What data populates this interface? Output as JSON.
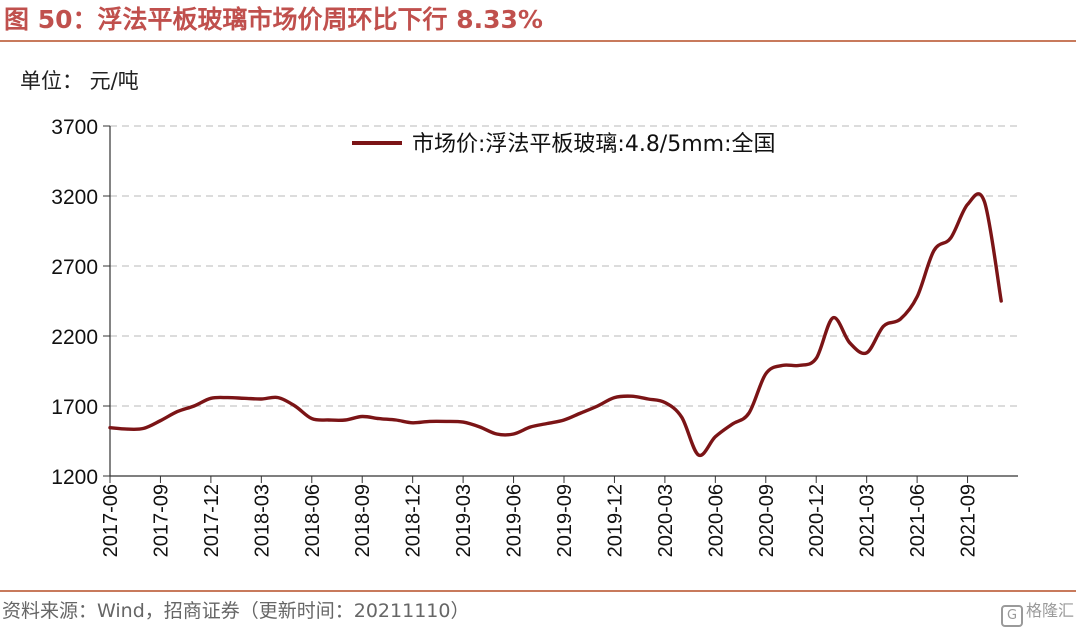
{
  "figure": {
    "title": "图 50：浮法平板玻璃市场价周环比下行 8.33%",
    "unit": "单位：  元/吨",
    "source": "资料来源：Wind，招商证券（更新时间：20211110）",
    "watermark_text": "格隆汇",
    "watermark_icon": "G",
    "accent_color": "#c0504d"
  },
  "chart_data": {
    "type": "line",
    "legend_position": "top-center",
    "grid": "horizontal-dashed",
    "ylim": [
      1200,
      3700
    ],
    "y_ticks": [
      "1200",
      "1700",
      "2200",
      "2700",
      "3200",
      "3700"
    ],
    "x_tick_labels": [
      "2017-06",
      "2017-09",
      "2017-12",
      "2018-03",
      "2018-06",
      "2018-09",
      "2018-12",
      "2019-03",
      "2019-06",
      "2019-09",
      "2019-12",
      "2020-03",
      "2020-06",
      "2020-09",
      "2020-12",
      "2021-03",
      "2021-06",
      "2021-09"
    ],
    "series": [
      {
        "name": "市场价:浮法平板玻璃:4.8/5mm:全国",
        "color": "#7b1416",
        "x": [
          "2017-06",
          "2017-07",
          "2017-08",
          "2017-09",
          "2017-10",
          "2017-11",
          "2017-12",
          "2018-01",
          "2018-02",
          "2018-03",
          "2018-04",
          "2018-05",
          "2018-06",
          "2018-07",
          "2018-08",
          "2018-09",
          "2018-10",
          "2018-11",
          "2018-12",
          "2019-01",
          "2019-02",
          "2019-03",
          "2019-04",
          "2019-05",
          "2019-06",
          "2019-07",
          "2019-08",
          "2019-09",
          "2019-10",
          "2019-11",
          "2019-12",
          "2020-01",
          "2020-02",
          "2020-03",
          "2020-04",
          "2020-05",
          "2020-06",
          "2020-07",
          "2020-08",
          "2020-09",
          "2020-10",
          "2020-11",
          "2020-12",
          "2021-01",
          "2021-02",
          "2021-03",
          "2021-04",
          "2021-05",
          "2021-06",
          "2021-07",
          "2021-08",
          "2021-09",
          "2021-10",
          "2021-11"
        ],
        "values": [
          1545,
          1535,
          1540,
          1595,
          1660,
          1700,
          1755,
          1760,
          1755,
          1750,
          1760,
          1700,
          1610,
          1600,
          1600,
          1625,
          1610,
          1600,
          1580,
          1590,
          1590,
          1585,
          1550,
          1500,
          1500,
          1550,
          1575,
          1600,
          1650,
          1700,
          1760,
          1770,
          1750,
          1725,
          1620,
          1350,
          1480,
          1570,
          1650,
          1930,
          1990,
          1990,
          2040,
          2330,
          2150,
          2080,
          2270,
          2320,
          2480,
          2810,
          2900,
          3140,
          3160,
          2450
        ]
      }
    ]
  }
}
